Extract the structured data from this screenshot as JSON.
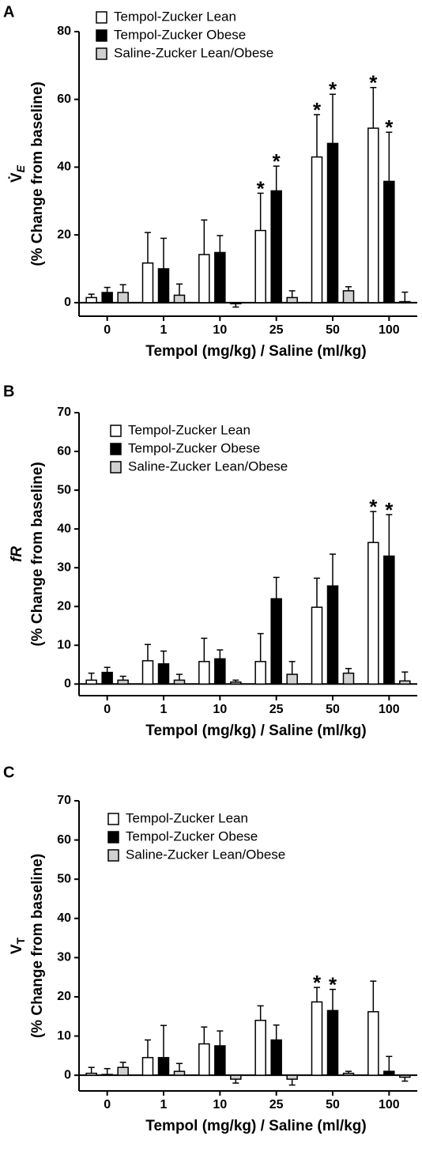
{
  "chart_data": [
    {
      "type": "bar",
      "panel": "A",
      "ylabel_symbol": "V̇",
      "ylabel_subscript": "E",
      "ylabel": "(% Change from baseline)",
      "xlabel": "Tempol (mg/kg) / Saline (ml/kg)",
      "categories": [
        "0",
        "1",
        "10",
        "25",
        "50",
        "100"
      ],
      "series": [
        {
          "name": "Tempol-Zucker Lean",
          "color": "#ffffff",
          "values": [
            1.5,
            11.7,
            14.2,
            21.3,
            43,
            51.5
          ],
          "errors": [
            1,
            9,
            10.2,
            11,
            12.5,
            12
          ]
        },
        {
          "name": "Tempol-Zucker Obese",
          "color": "#000000",
          "values": [
            3,
            10,
            14.8,
            33,
            47,
            35.8
          ],
          "errors": [
            1.5,
            9,
            5,
            7.3,
            14.5,
            14.5
          ]
        },
        {
          "name": "Saline-Zucker Lean/Obese",
          "color": "#d0d0d0",
          "values": [
            3,
            2.2,
            -0.3,
            1.5,
            3.5,
            0.3
          ],
          "errors": [
            2.3,
            3.3,
            1,
            2,
            1.2,
            2.8
          ]
        }
      ],
      "annotations": [
        {
          "text": "*",
          "category": 3,
          "series": 0
        },
        {
          "text": "*",
          "category": 3,
          "series": 1
        },
        {
          "text": "*",
          "category": 4,
          "series": 0
        },
        {
          "text": "*",
          "category": 4,
          "series": 1
        },
        {
          "text": "*",
          "category": 5,
          "series": 0
        },
        {
          "text": "*",
          "category": 5,
          "series": 1
        }
      ],
      "ylim": [
        -4,
        80
      ],
      "yticks": [
        0,
        20,
        40,
        60,
        80
      ]
    },
    {
      "type": "bar",
      "panel": "B",
      "ylabel_symbol": "fR",
      "ylabel": "(% Change from baseline)",
      "xlabel": "Tempol (mg/kg) / Saline (ml/kg)",
      "categories": [
        "0",
        "1",
        "10",
        "25",
        "50",
        "100"
      ],
      "series": [
        {
          "name": "Tempol-Zucker Lean",
          "color": "#ffffff",
          "values": [
            1,
            6,
            5.8,
            5.8,
            19.8,
            36.5
          ],
          "errors": [
            1.8,
            4.2,
            6,
            7.2,
            7.5,
            8
          ]
        },
        {
          "name": "Tempol-Zucker Obese",
          "color": "#000000",
          "values": [
            3,
            5.2,
            6.5,
            22,
            25.3,
            33
          ],
          "errors": [
            1.3,
            3.3,
            2.3,
            5.5,
            8.2,
            10.7
          ]
        },
        {
          "name": "Saline-Zucker Lean/Obese",
          "color": "#d0d0d0",
          "values": [
            1,
            1,
            0.5,
            2.5,
            2.8,
            0.8
          ],
          "errors": [
            1,
            1.5,
            0.5,
            3.3,
            1.2,
            2.3
          ]
        }
      ],
      "annotations": [
        {
          "text": "*",
          "category": 5,
          "series": 0
        },
        {
          "text": "*",
          "category": 5,
          "series": 1
        }
      ],
      "ylim": [
        -3,
        70
      ],
      "yticks": [
        0,
        10,
        20,
        30,
        40,
        50,
        60,
        70
      ]
    },
    {
      "type": "bar",
      "panel": "C",
      "ylabel_symbol": "V",
      "ylabel_subscript": "T",
      "ylabel": "(% Change from baseline)",
      "xlabel": "Tempol (mg/kg) / Saline (ml/kg)",
      "categories": [
        "0",
        "1",
        "10",
        "25",
        "50",
        "100"
      ],
      "series": [
        {
          "name": "Tempol-Zucker Lean",
          "color": "#ffffff",
          "values": [
            0.5,
            4.5,
            8,
            14,
            18.7,
            16.2
          ],
          "errors": [
            1.5,
            4.5,
            4.3,
            3.7,
            3.7,
            7.8
          ]
        },
        {
          "name": "Tempol-Zucker Obese",
          "color": "#000000",
          "values": [
            0.2,
            4.5,
            7.5,
            9,
            16.5,
            1
          ],
          "errors": [
            1.5,
            8.2,
            3.8,
            3.8,
            5.4,
            3.8
          ]
        },
        {
          "name": "Saline-Zucker Lean/Obese",
          "color": "#d0d0d0",
          "values": [
            2,
            1,
            -1,
            -1,
            0.5,
            -0.5
          ],
          "errors": [
            1.3,
            2,
            1,
            1.5,
            0.5,
            1
          ]
        }
      ],
      "annotations": [
        {
          "text": "*",
          "category": 4,
          "series": 0
        },
        {
          "text": "*",
          "category": 4,
          "series": 1
        }
      ],
      "ylim": [
        -4,
        70
      ],
      "yticks": [
        0,
        10,
        20,
        30,
        40,
        50,
        60,
        70
      ]
    }
  ]
}
